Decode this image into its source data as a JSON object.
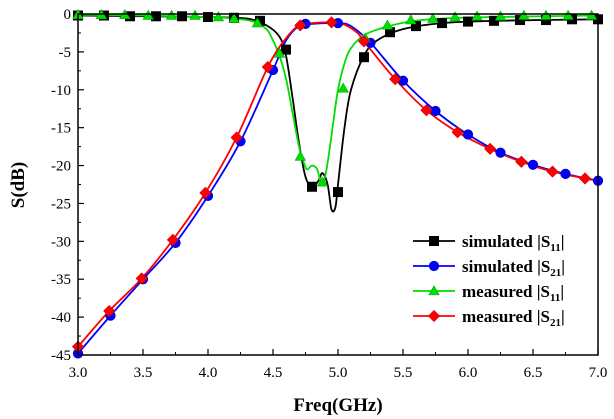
{
  "chart_data": {
    "type": "line",
    "title": "",
    "xlabel": "Freq(GHz)",
    "ylabel": "S(dB)",
    "xlim": [
      3.0,
      7.0
    ],
    "ylim": [
      -45,
      0
    ],
    "xticks": [
      "3.0",
      "3.5",
      "4.0",
      "4.5",
      "5.0",
      "5.5",
      "6.0",
      "6.5",
      "7.0"
    ],
    "yticks": [
      "0",
      "-5",
      "-10",
      "-15",
      "-20",
      "-25",
      "-30",
      "-35",
      "-40",
      "-45"
    ],
    "grid": false,
    "legend_position": "bottom-right",
    "series": [
      {
        "name": "simulated |S11|",
        "legend_main": "simulated |S",
        "legend_sub": "11",
        "legend_end": "|",
        "color": "#000000",
        "marker": "square",
        "curve": [
          [
            3.0,
            -0.2
          ],
          [
            3.5,
            -0.3
          ],
          [
            4.0,
            -0.4
          ],
          [
            4.3,
            -0.6
          ],
          [
            4.45,
            -1.5
          ],
          [
            4.55,
            -3.0
          ],
          [
            4.6,
            -5.5
          ],
          [
            4.65,
            -11.0
          ],
          [
            4.7,
            -17.0
          ],
          [
            4.75,
            -21.5
          ],
          [
            4.8,
            -22.8
          ],
          [
            4.85,
            -22.0
          ],
          [
            4.88,
            -21.0
          ],
          [
            4.92,
            -22.5
          ],
          [
            4.95,
            -25.8
          ],
          [
            4.98,
            -25.5
          ],
          [
            5.0,
            -22.5
          ],
          [
            5.05,
            -15.0
          ],
          [
            5.1,
            -10.0
          ],
          [
            5.2,
            -5.5
          ],
          [
            5.3,
            -3.5
          ],
          [
            5.5,
            -2.0
          ],
          [
            5.8,
            -1.2
          ],
          [
            6.2,
            -0.9
          ],
          [
            7.0,
            -0.7
          ]
        ],
        "markers": [
          [
            3.0,
            -0.2
          ],
          [
            3.2,
            -0.2
          ],
          [
            3.4,
            -0.3
          ],
          [
            3.6,
            -0.3
          ],
          [
            3.8,
            -0.3
          ],
          [
            4.0,
            -0.4
          ],
          [
            4.2,
            -0.5
          ],
          [
            4.4,
            -0.9
          ],
          [
            4.6,
            -4.7
          ],
          [
            4.8,
            -22.8
          ],
          [
            5.0,
            -23.5
          ],
          [
            5.2,
            -5.7
          ],
          [
            5.4,
            -2.4
          ],
          [
            5.6,
            -1.6
          ],
          [
            5.8,
            -1.2
          ],
          [
            6.0,
            -1.0
          ],
          [
            6.2,
            -0.9
          ],
          [
            6.4,
            -0.8
          ],
          [
            6.6,
            -0.8
          ],
          [
            6.8,
            -0.7
          ],
          [
            7.0,
            -0.7
          ]
        ]
      },
      {
        "name": "simulated |S21|",
        "legend_main": "simulated |S",
        "legend_sub": "21",
        "legend_end": "|",
        "color": "#0000ff",
        "marker": "circle",
        "curve": [
          [
            3.0,
            -44.8
          ],
          [
            3.25,
            -39.8
          ],
          [
            3.5,
            -35.0
          ],
          [
            3.75,
            -30.2
          ],
          [
            4.0,
            -24.0
          ],
          [
            4.25,
            -16.8
          ],
          [
            4.5,
            -7.4
          ],
          [
            4.6,
            -3.5
          ],
          [
            4.7,
            -1.6
          ],
          [
            4.8,
            -1.3
          ],
          [
            5.0,
            -1.2
          ],
          [
            5.1,
            -1.6
          ],
          [
            5.25,
            -3.8
          ],
          [
            5.5,
            -8.8
          ],
          [
            5.75,
            -12.8
          ],
          [
            6.0,
            -15.9
          ],
          [
            6.25,
            -18.3
          ],
          [
            6.5,
            -19.9
          ],
          [
            6.75,
            -21.1
          ],
          [
            7.0,
            -22.0
          ]
        ],
        "markers": [
          [
            3.0,
            -44.8
          ],
          [
            3.25,
            -39.8
          ],
          [
            3.5,
            -35.0
          ],
          [
            3.75,
            -30.2
          ],
          [
            4.0,
            -24.0
          ],
          [
            4.25,
            -16.8
          ],
          [
            4.5,
            -7.4
          ],
          [
            4.75,
            -1.3
          ],
          [
            5.0,
            -1.2
          ],
          [
            5.25,
            -3.8
          ],
          [
            5.5,
            -8.8
          ],
          [
            5.75,
            -12.8
          ],
          [
            6.0,
            -15.9
          ],
          [
            6.25,
            -18.3
          ],
          [
            6.5,
            -19.9
          ],
          [
            6.75,
            -21.1
          ],
          [
            7.0,
            -22.0
          ]
        ]
      },
      {
        "name": "measured |S11|",
        "legend_main": "measured |S",
        "legend_sub": "11",
        "legend_end": "|",
        "color": "#00dd00",
        "marker": "triangle",
        "curve": [
          [
            3.0,
            -0.1
          ],
          [
            3.5,
            -0.2
          ],
          [
            4.0,
            -0.4
          ],
          [
            4.2,
            -0.6
          ],
          [
            4.35,
            -1.0
          ],
          [
            4.45,
            -2.0
          ],
          [
            4.5,
            -3.5
          ],
          [
            4.55,
            -5.5
          ],
          [
            4.6,
            -8.5
          ],
          [
            4.65,
            -13.0
          ],
          [
            4.7,
            -17.5
          ],
          [
            4.73,
            -19.2
          ],
          [
            4.76,
            -20.5
          ],
          [
            4.8,
            -20.0
          ],
          [
            4.84,
            -20.5
          ],
          [
            4.87,
            -22.3
          ],
          [
            4.9,
            -21.5
          ],
          [
            4.93,
            -18.5
          ],
          [
            4.97,
            -13.5
          ],
          [
            5.0,
            -10.0
          ],
          [
            5.05,
            -6.5
          ],
          [
            5.1,
            -4.5
          ],
          [
            5.2,
            -2.8
          ],
          [
            5.35,
            -1.8
          ],
          [
            5.55,
            -1.0
          ],
          [
            5.8,
            -0.6
          ],
          [
            6.2,
            -0.4
          ],
          [
            7.0,
            -0.2
          ]
        ],
        "markers": [
          [
            3.0,
            -0.1
          ],
          [
            3.18,
            -0.1
          ],
          [
            3.36,
            -0.1
          ],
          [
            3.54,
            -0.2
          ],
          [
            3.72,
            -0.2
          ],
          [
            3.9,
            -0.2
          ],
          [
            4.08,
            -0.4
          ],
          [
            4.2,
            -0.6
          ],
          [
            4.38,
            -1.2
          ],
          [
            4.55,
            -5.2
          ],
          [
            4.71,
            -18.8
          ],
          [
            4.88,
            -22.2
          ],
          [
            5.04,
            -9.8
          ],
          [
            5.21,
            -3.2
          ],
          [
            5.38,
            -1.5
          ],
          [
            5.56,
            -0.8
          ],
          [
            5.73,
            -0.6
          ],
          [
            5.9,
            -0.4
          ],
          [
            6.07,
            -0.3
          ],
          [
            6.25,
            -0.3
          ],
          [
            6.43,
            -0.2
          ],
          [
            6.6,
            -0.2
          ],
          [
            6.77,
            -0.2
          ],
          [
            6.95,
            -0.2
          ]
        ]
      },
      {
        "name": "measured |S21|",
        "legend_main": "measured |S",
        "legend_sub": "21",
        "legend_end": "|",
        "color": "#ff0000",
        "marker": "diamond",
        "curve": [
          [
            3.0,
            -43.9
          ],
          [
            3.24,
            -39.2
          ],
          [
            3.49,
            -34.9
          ],
          [
            3.73,
            -29.8
          ],
          [
            3.98,
            -23.6
          ],
          [
            4.22,
            -16.3
          ],
          [
            4.46,
            -7.0
          ],
          [
            4.6,
            -3.2
          ],
          [
            4.7,
            -1.5
          ],
          [
            4.8,
            -1.2
          ],
          [
            4.95,
            -1.1
          ],
          [
            5.05,
            -1.4
          ],
          [
            5.15,
            -2.5
          ],
          [
            5.2,
            -3.6
          ],
          [
            5.44,
            -8.6
          ],
          [
            5.68,
            -12.7
          ],
          [
            5.92,
            -15.6
          ],
          [
            6.17,
            -17.8
          ],
          [
            6.41,
            -19.5
          ],
          [
            6.65,
            -20.8
          ],
          [
            6.9,
            -21.7
          ],
          [
            7.0,
            -22.0
          ]
        ],
        "markers": [
          [
            3.0,
            -43.9
          ],
          [
            3.24,
            -39.2
          ],
          [
            3.49,
            -34.9
          ],
          [
            3.73,
            -29.8
          ],
          [
            3.98,
            -23.6
          ],
          [
            4.22,
            -16.3
          ],
          [
            4.46,
            -7.0
          ],
          [
            4.71,
            -1.5
          ],
          [
            4.95,
            -1.1
          ],
          [
            5.2,
            -3.6
          ],
          [
            5.44,
            -8.6
          ],
          [
            5.68,
            -12.7
          ],
          [
            5.92,
            -15.6
          ],
          [
            6.17,
            -17.8
          ],
          [
            6.41,
            -19.5
          ],
          [
            6.65,
            -20.8
          ],
          [
            6.9,
            -21.7
          ]
        ]
      }
    ]
  }
}
